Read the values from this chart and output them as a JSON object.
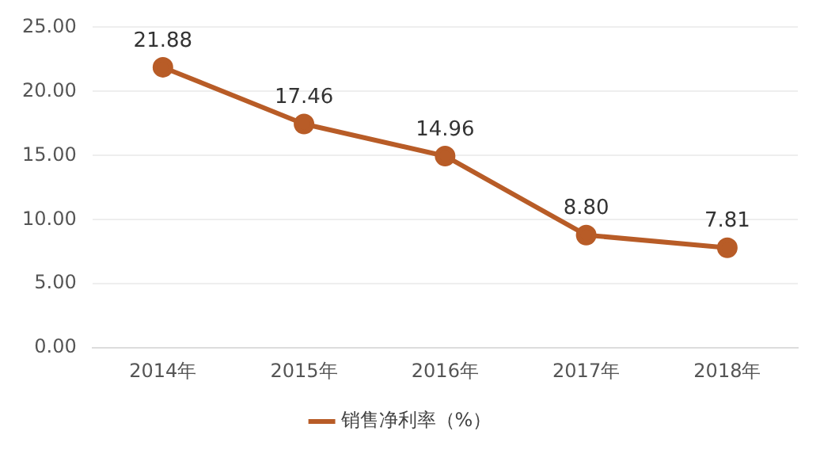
{
  "chart_data": {
    "type": "line",
    "categories": [
      "2014年",
      "2015年",
      "2016年",
      "2017年",
      "2018年"
    ],
    "series": [
      {
        "name": "销售净利率（%）",
        "color": "#b85c27",
        "values": [
          21.88,
          17.46,
          14.96,
          8.8,
          7.81
        ],
        "value_labels": [
          "21.88",
          "17.46",
          "14.96",
          "8.80",
          "7.81"
        ]
      }
    ],
    "ylim": [
      0,
      25
    ],
    "yticks": [
      {
        "value": 0,
        "label": "0.00"
      },
      {
        "value": 5,
        "label": "5.00"
      },
      {
        "value": 10,
        "label": "10.00"
      },
      {
        "value": 15,
        "label": "15.00"
      },
      {
        "value": 20,
        "label": "20.00"
      },
      {
        "value": 25,
        "label": "25.00"
      }
    ],
    "grid": "y",
    "legend": "bottom",
    "marker": "circle",
    "line_style": "solid"
  }
}
